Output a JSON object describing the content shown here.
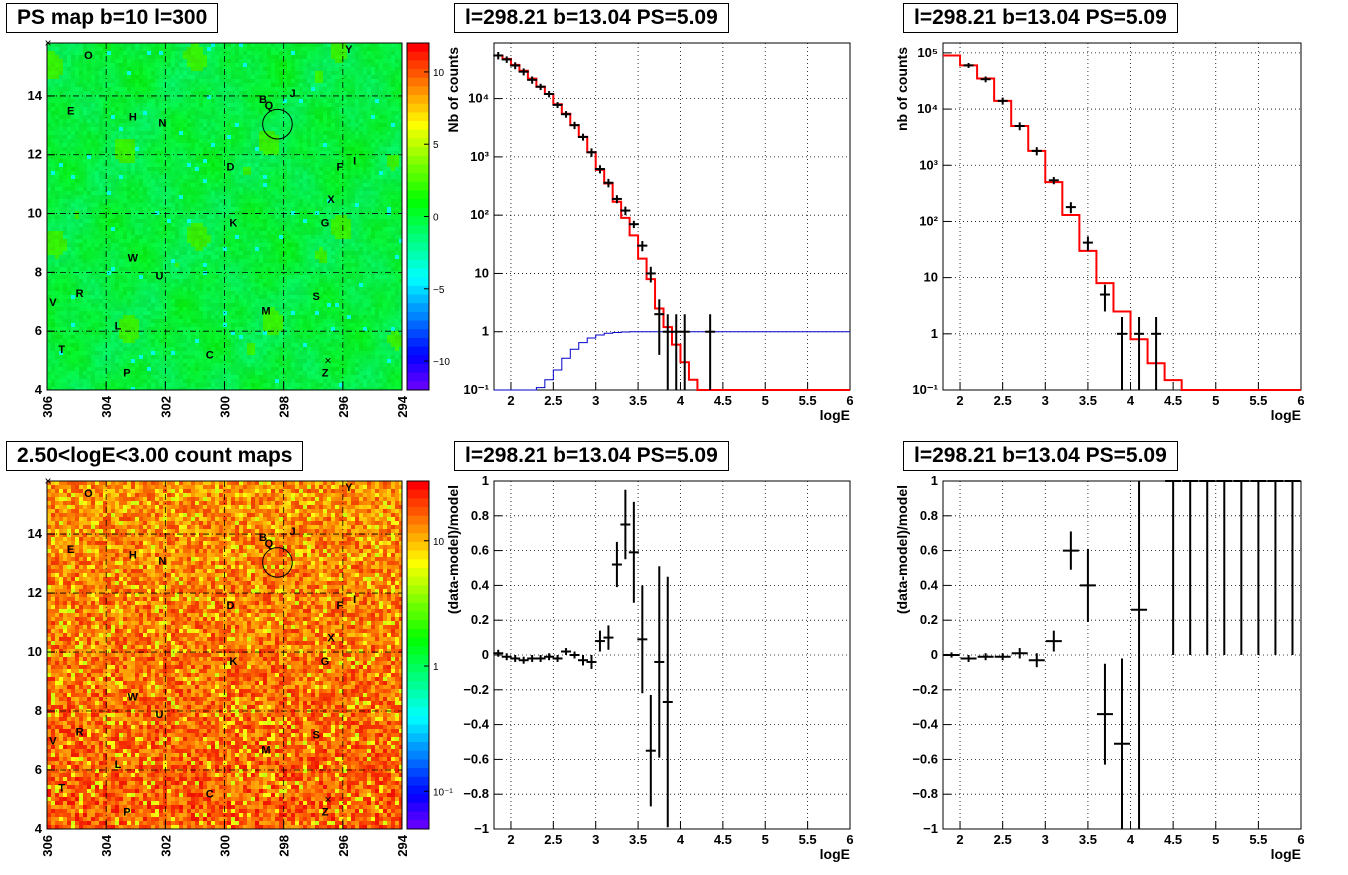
{
  "titles": {
    "map1": "PS map b=10 l=300",
    "spec1": "l=298.21 b=13.04 PS=5.09",
    "spec2": "l=298.21 b=13.04 PS=5.09",
    "map2": "2.50<logE<3.00 count maps",
    "res1": "l=298.21 b=13.04 PS=5.09",
    "res2": "l=298.21 b=13.04 PS=5.09"
  },
  "colors": {
    "model": "#ff0000",
    "exposure": "#0000cc",
    "data": "#000000",
    "map1_bg": "#00f040",
    "map2_bg": "#ff5a00"
  },
  "chart_data": [
    {
      "id": "map1",
      "type": "heatmap",
      "title": "PS map b=10 l=300",
      "x_ticks": [
        "306",
        "304",
        "302",
        "300",
        "298",
        "296",
        "294"
      ],
      "y_ticks": [
        "4",
        "6",
        "8",
        "10",
        "12",
        "14"
      ],
      "xlim": [
        306,
        294
      ],
      "ylim": [
        4,
        15.8
      ],
      "colorbar": {
        "scale": "linear",
        "range": [
          -12,
          12
        ],
        "ticks": [
          "10",
          "5",
          "0",
          "−5",
          "−10"
        ]
      },
      "sources": [
        {
          "name": "O",
          "l": 304.6,
          "b": 15.4
        },
        {
          "name": "Y",
          "l": 295.8,
          "b": 15.6
        },
        {
          "name": "B",
          "l": 298.7,
          "b": 13.9
        },
        {
          "name": "Q",
          "l": 298.5,
          "b": 13.7
        },
        {
          "name": "J",
          "l": 297.7,
          "b": 14.1
        },
        {
          "name": "E",
          "l": 305.2,
          "b": 13.5
        },
        {
          "name": "H",
          "l": 303.1,
          "b": 13.3
        },
        {
          "name": "N",
          "l": 302.1,
          "b": 13.1
        },
        {
          "name": "D",
          "l": 299.8,
          "b": 11.6
        },
        {
          "name": "F",
          "l": 296.1,
          "b": 11.6
        },
        {
          "name": "I",
          "l": 295.6,
          "b": 11.8
        },
        {
          "name": "X",
          "l": 296.4,
          "b": 10.5
        },
        {
          "name": "K",
          "l": 299.7,
          "b": 9.7
        },
        {
          "name": "G",
          "l": 296.6,
          "b": 9.7
        },
        {
          "name": "W",
          "l": 303.1,
          "b": 8.5
        },
        {
          "name": "U",
          "l": 302.2,
          "b": 7.9
        },
        {
          "name": "R",
          "l": 304.9,
          "b": 7.3
        },
        {
          "name": "V",
          "l": 305.8,
          "b": 7.0
        },
        {
          "name": "S",
          "l": 296.9,
          "b": 7.2
        },
        {
          "name": "M",
          "l": 298.6,
          "b": 6.7
        },
        {
          "name": "L",
          "l": 303.6,
          "b": 6.2
        },
        {
          "name": "T",
          "l": 305.5,
          "b": 5.4
        },
        {
          "name": "C",
          "l": 300.5,
          "b": 5.2
        },
        {
          "name": "P",
          "l": 303.3,
          "b": 4.6
        },
        {
          "name": "Z",
          "l": 296.6,
          "b": 4.6
        }
      ],
      "circle": {
        "l": 298.21,
        "b": 13.04,
        "r": 0.5
      }
    },
    {
      "id": "spec1",
      "type": "line",
      "title": "l=298.21 b=13.04 PS=5.09",
      "xlabel": "logE",
      "ylabel": "Nb of counts",
      "yscale": "log",
      "xlim": [
        1.8,
        6.0
      ],
      "ylim": [
        0.1,
        90000
      ],
      "x_ticks": [
        "2",
        "2.5",
        "3",
        "3.5",
        "4",
        "4.5",
        "5",
        "5.5",
        "6"
      ],
      "y_ticks": [
        "10⁻¹",
        "1",
        "10",
        "10²",
        "10³",
        "10⁴"
      ],
      "series": [
        {
          "kind": "model_step",
          "bin_edges": [
            1.8,
            1.9,
            2.0,
            2.1,
            2.2,
            2.3,
            2.4,
            2.5,
            2.6,
            2.7,
            2.8,
            2.9,
            3.0,
            3.1,
            3.2,
            3.3,
            3.4,
            3.5,
            3.6,
            3.7,
            3.8,
            3.9,
            4.0,
            4.1,
            4.2,
            6.0
          ],
          "values": [
            55000,
            48000,
            38000,
            30000,
            22000,
            16000,
            12000,
            8000,
            5500,
            3500,
            2200,
            1200,
            600,
            350,
            170,
            90,
            45,
            18,
            8,
            2.5,
            1.2,
            0.6,
            0.3,
            0.15,
            0.1
          ]
        },
        {
          "kind": "exposure_step",
          "bin_edges": [
            1.8,
            2.3,
            2.4,
            2.5,
            2.6,
            2.7,
            2.8,
            2.9,
            3.0,
            3.1,
            3.2,
            3.3,
            3.4,
            6.0
          ],
          "values": [
            0.1,
            0.11,
            0.15,
            0.22,
            0.35,
            0.5,
            0.65,
            0.78,
            0.88,
            0.94,
            0.97,
            0.99,
            1.0
          ]
        },
        {
          "kind": "data_points",
          "points": [
            [
              1.85,
              55000,
              8000
            ],
            [
              1.95,
              47000,
              6000
            ],
            [
              2.05,
              37000,
              5000
            ],
            [
              2.15,
              29000,
              4000
            ],
            [
              2.25,
              21000,
              3000
            ],
            [
              2.35,
              16000,
              2000
            ],
            [
              2.45,
              12000,
              1500
            ],
            [
              2.55,
              7800,
              900
            ],
            [
              2.65,
              5400,
              700
            ],
            [
              2.75,
              3500,
              500
            ],
            [
              2.85,
              2200,
              300
            ],
            [
              2.95,
              1200,
              200
            ],
            [
              3.05,
              620,
              100
            ],
            [
              3.15,
              360,
              60
            ],
            [
              3.25,
              190,
              30
            ],
            [
              3.35,
              120,
              20
            ],
            [
              3.45,
              70,
              10
            ],
            [
              3.55,
              30,
              6
            ],
            [
              3.65,
              10,
              3
            ],
            [
              3.75,
              2,
              1.6
            ],
            [
              3.85,
              1,
              0.99
            ],
            [
              3.95,
              1,
              0.99
            ],
            [
              4.05,
              1,
              0.99
            ],
            [
              4.35,
              1,
              0.99
            ]
          ]
        }
      ]
    },
    {
      "id": "spec2",
      "type": "line",
      "title": "l=298.21 b=13.04 PS=5.09",
      "xlabel": "logE",
      "ylabel": "nb of counts",
      "yscale": "log",
      "xlim": [
        1.8,
        6.0
      ],
      "ylim": [
        0.1,
        150000
      ],
      "x_ticks": [
        "2",
        "2.5",
        "3",
        "3.5",
        "4",
        "4.5",
        "5",
        "5.5",
        "6"
      ],
      "y_ticks": [
        "10⁻¹",
        "1",
        "10",
        "10²",
        "10³",
        "10⁴",
        "10⁵"
      ],
      "series": [
        {
          "kind": "model_step",
          "bin_edges": [
            1.8,
            2.0,
            2.2,
            2.4,
            2.6,
            2.8,
            3.0,
            3.2,
            3.4,
            3.6,
            3.8,
            4.0,
            4.2,
            4.4,
            4.6,
            6.0
          ],
          "values": [
            90000,
            60000,
            35000,
            14000,
            5000,
            1800,
            500,
            130,
            30,
            8,
            2.5,
            0.8,
            0.3,
            0.15,
            0.1
          ]
        },
        {
          "kind": "data_points",
          "points": [
            [
              2.1,
              60000,
              6000
            ],
            [
              2.3,
              34000,
              4000
            ],
            [
              2.5,
              14000,
              2000
            ],
            [
              2.7,
              5000,
              800
            ],
            [
              2.9,
              1800,
              300
            ],
            [
              3.1,
              540,
              80
            ],
            [
              3.3,
              180,
              40
            ],
            [
              3.5,
              42,
              12
            ],
            [
              3.7,
              5,
              2.5
            ],
            [
              3.9,
              1,
              0.99
            ],
            [
              4.1,
              1,
              0.99
            ],
            [
              4.3,
              1,
              0.99
            ]
          ]
        }
      ]
    },
    {
      "id": "map2",
      "type": "heatmap",
      "title": "2.50<logE<3.00 count maps",
      "x_ticks": [
        "306",
        "304",
        "302",
        "300",
        "298",
        "296",
        "294"
      ],
      "y_ticks": [
        "4",
        "6",
        "8",
        "10",
        "12",
        "14"
      ],
      "xlim": [
        306,
        294
      ],
      "ylim": [
        4,
        15.8
      ],
      "colorbar": {
        "scale": "log",
        "range": [
          0.05,
          30
        ],
        "ticks": [
          "10",
          "1",
          "10⁻¹"
        ]
      },
      "circle": {
        "l": 298.21,
        "b": 13.04,
        "r": 0.5
      }
    },
    {
      "id": "res1",
      "type": "scatter",
      "title": "l=298.21 b=13.04 PS=5.09",
      "xlabel": "logE",
      "ylabel": "(data-model)/model",
      "xlim": [
        1.8,
        6.0
      ],
      "ylim": [
        -1,
        1
      ],
      "x_ticks": [
        "2",
        "2.5",
        "3",
        "3.5",
        "4",
        "4.5",
        "5",
        "5.5",
        "6"
      ],
      "y_ticks": [
        "−1",
        "−0.8",
        "−0.6",
        "−0.4",
        "−0.2",
        "0",
        "0.2",
        "0.4",
        "0.6",
        "0.8",
        "1"
      ],
      "points": [
        [
          1.85,
          0.01,
          0.02
        ],
        [
          1.95,
          -0.01,
          0.02
        ],
        [
          2.05,
          -0.02,
          0.02
        ],
        [
          2.15,
          -0.03,
          0.02
        ],
        [
          2.25,
          -0.02,
          0.02
        ],
        [
          2.35,
          -0.02,
          0.02
        ],
        [
          2.45,
          -0.01,
          0.02
        ],
        [
          2.55,
          -0.02,
          0.02
        ],
        [
          2.65,
          0.02,
          0.02
        ],
        [
          2.75,
          0.0,
          0.02
        ],
        [
          2.85,
          -0.03,
          0.03
        ],
        [
          2.95,
          -0.04,
          0.04
        ],
        [
          3.05,
          0.08,
          0.06
        ],
        [
          3.15,
          0.1,
          0.07
        ],
        [
          3.25,
          0.52,
          0.13
        ],
        [
          3.35,
          0.75,
          0.2
        ],
        [
          3.45,
          0.59,
          0.29
        ],
        [
          3.55,
          0.09,
          0.31
        ],
        [
          3.65,
          -0.55,
          0.32
        ],
        [
          3.75,
          -0.04,
          0.55
        ],
        [
          3.85,
          -0.27,
          0.72
        ]
      ]
    },
    {
      "id": "res2",
      "type": "scatter",
      "title": "l=298.21 b=13.04 PS=5.09",
      "xlabel": "logE",
      "ylabel": "(data-model)/model",
      "xlim": [
        1.8,
        6.0
      ],
      "ylim": [
        -1,
        1
      ],
      "x_ticks": [
        "2",
        "2.5",
        "3",
        "3.5",
        "4",
        "4.5",
        "5",
        "5.5",
        "6"
      ],
      "y_ticks": [
        "−1",
        "−0.8",
        "−0.6",
        "−0.4",
        "−0.2",
        "0",
        "0.2",
        "0.4",
        "0.6",
        "0.8",
        "1"
      ],
      "points": [
        [
          1.9,
          0.0,
          0.015
        ],
        [
          2.1,
          -0.02,
          0.02
        ],
        [
          2.3,
          -0.01,
          0.02
        ],
        [
          2.5,
          -0.01,
          0.02
        ],
        [
          2.7,
          0.01,
          0.03
        ],
        [
          2.9,
          -0.03,
          0.04
        ],
        [
          3.1,
          0.08,
          0.06
        ],
        [
          3.3,
          0.6,
          0.11
        ],
        [
          3.5,
          0.4,
          0.21
        ],
        [
          3.7,
          -0.34,
          0.29
        ],
        [
          3.9,
          -0.51,
          0.49
        ],
        [
          4.1,
          0.26,
          1.5
        ],
        [
          4.5,
          1,
          1
        ],
        [
          4.7,
          1,
          1
        ],
        [
          4.9,
          1,
          1
        ],
        [
          5.1,
          1,
          1
        ],
        [
          5.3,
          1,
          1
        ],
        [
          5.5,
          1,
          1
        ],
        [
          5.7,
          1,
          1
        ],
        [
          5.9,
          1,
          1
        ]
      ]
    }
  ]
}
